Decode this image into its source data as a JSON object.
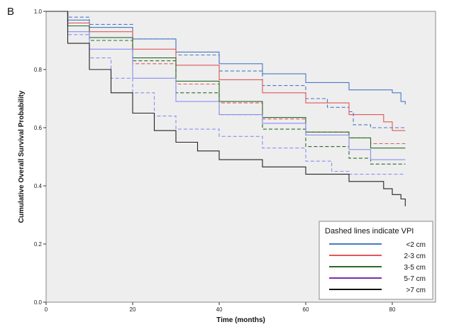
{
  "panel_label": "B",
  "chart_data": {
    "type": "line",
    "title": "",
    "xlabel": "Time (months)",
    "ylabel": "Cumulative Overall Survival Probability",
    "xlim": [
      0,
      90
    ],
    "ylim": [
      0,
      1.0
    ],
    "x_ticks": [
      "0",
      "20",
      "40",
      "60",
      "80"
    ],
    "y_ticks": [
      "0.0",
      "0.2",
      "0.4",
      "0.6",
      "0.8",
      "1.0"
    ],
    "grid": false,
    "legend": {
      "title": "Dashed lines indicate VPI",
      "position": "bottom-right",
      "entries": [
        {
          "label": "<2 cm",
          "color": "#4a78c8"
        },
        {
          "label": "2-3 cm",
          "color": "#e2575a"
        },
        {
          "label": "3-5 cm",
          "color": "#2a6a2a"
        },
        {
          "label": "5-7 cm",
          "color": "#7a2ea8"
        },
        {
          "label": ">7 cm",
          "color": "#111111"
        }
      ]
    },
    "series": [
      {
        "name": "<2 cm",
        "style": "solid",
        "color": "#4a78c8",
        "x": [
          0,
          5,
          10,
          20,
          30,
          40,
          50,
          60,
          70,
          80,
          82,
          83
        ],
        "y": [
          1.0,
          0.97,
          0.945,
          0.905,
          0.86,
          0.82,
          0.785,
          0.755,
          0.73,
          0.72,
          0.69,
          0.68
        ]
      },
      {
        "name": "<2 cm",
        "style": "dashed",
        "color": "#4a78c8",
        "x": [
          0,
          5,
          10,
          20,
          30,
          40,
          50,
          60,
          65,
          70,
          71,
          75,
          80,
          83
        ],
        "y": [
          1.0,
          0.98,
          0.955,
          0.905,
          0.85,
          0.795,
          0.745,
          0.7,
          0.67,
          0.655,
          0.61,
          0.6,
          0.6,
          0.6
        ]
      },
      {
        "name": "2-3 cm",
        "style": "solid",
        "color": "#e2575a",
        "x": [
          0,
          5,
          10,
          20,
          30,
          40,
          50,
          60,
          70,
          78,
          80,
          83
        ],
        "y": [
          1.0,
          0.96,
          0.93,
          0.87,
          0.815,
          0.765,
          0.72,
          0.685,
          0.645,
          0.62,
          0.59,
          0.59
        ]
      },
      {
        "name": "2-3 cm",
        "style": "dashed",
        "color": "#e2575a",
        "x": [
          0,
          5,
          10,
          20,
          30,
          40,
          50,
          60,
          70,
          75,
          83
        ],
        "y": [
          1.0,
          0.95,
          0.9,
          0.82,
          0.75,
          0.685,
          0.63,
          0.585,
          0.565,
          0.545,
          0.545
        ]
      },
      {
        "name": "3-5 cm",
        "style": "solid",
        "color": "#2a6a2a",
        "x": [
          0,
          5,
          10,
          20,
          30,
          40,
          50,
          60,
          70,
          75,
          83
        ],
        "y": [
          1.0,
          0.95,
          0.91,
          0.84,
          0.76,
          0.69,
          0.635,
          0.585,
          0.565,
          0.53,
          0.53
        ]
      },
      {
        "name": "3-5 cm",
        "style": "dashed",
        "color": "#2a6a2a",
        "x": [
          0,
          5,
          10,
          20,
          30,
          40,
          50,
          60,
          70,
          75,
          83
        ],
        "y": [
          1.0,
          0.95,
          0.9,
          0.83,
          0.72,
          0.645,
          0.595,
          0.535,
          0.495,
          0.475,
          0.475
        ]
      },
      {
        "name": "5-7 cm",
        "style": "solid",
        "color": "#8a8ef0",
        "x": [
          0,
          5,
          10,
          20,
          30,
          40,
          50,
          60,
          70,
          75,
          83
        ],
        "y": [
          1.0,
          0.93,
          0.87,
          0.77,
          0.69,
          0.645,
          0.615,
          0.575,
          0.525,
          0.49,
          0.49
        ]
      },
      {
        "name": "5-7 cm",
        "style": "dashed",
        "color": "#8a8ef0",
        "x": [
          0,
          5,
          10,
          15,
          20,
          25,
          30,
          40,
          50,
          60,
          66,
          70,
          83
        ],
        "y": [
          1.0,
          0.92,
          0.84,
          0.77,
          0.72,
          0.64,
          0.595,
          0.57,
          0.53,
          0.485,
          0.45,
          0.44,
          0.44
        ]
      },
      {
        "name": ">7 cm",
        "style": "solid",
        "color": "#222222",
        "x": [
          0,
          5,
          10,
          15,
          20,
          25,
          30,
          35,
          40,
          50,
          60,
          70,
          78,
          80,
          82,
          83
        ],
        "y": [
          1.0,
          0.89,
          0.8,
          0.72,
          0.65,
          0.59,
          0.55,
          0.52,
          0.49,
          0.465,
          0.44,
          0.415,
          0.39,
          0.37,
          0.355,
          0.33
        ]
      }
    ]
  }
}
